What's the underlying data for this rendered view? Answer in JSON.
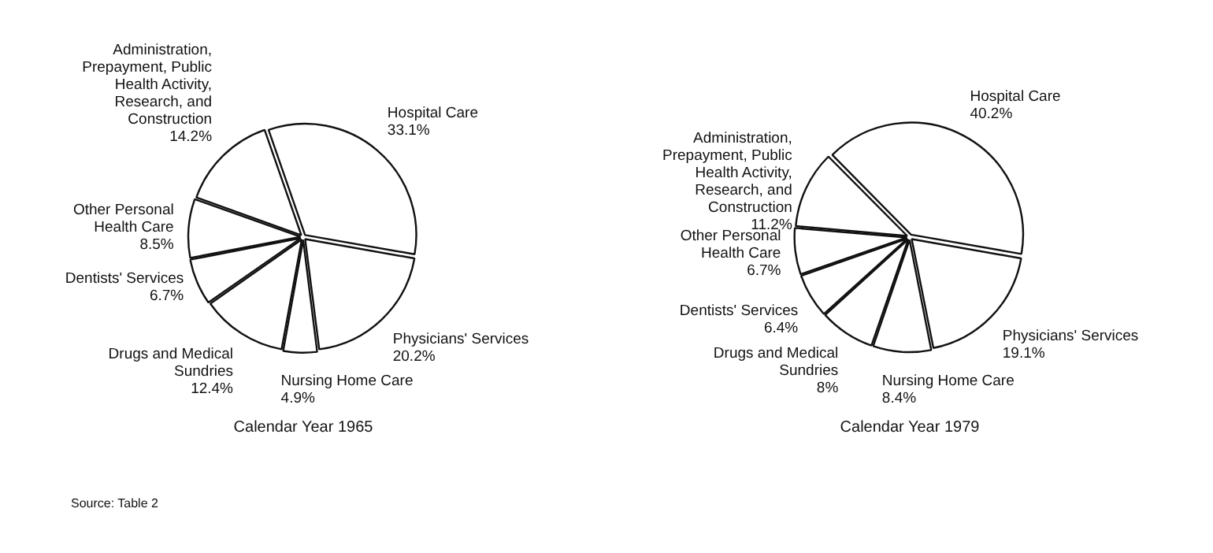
{
  "chart_data": [
    {
      "type": "pie",
      "title": "Calendar Year 1965",
      "categories": [
        "Hospital Care",
        "Physicians' Services",
        "Nursing Home Care",
        "Drugs and Medical Sundries",
        "Dentists' Services",
        "Other Personal Health Care",
        "Administration, Prepayment, Public Health Activity, Research, and Construction"
      ],
      "values": [
        33.1,
        20.2,
        4.9,
        12.4,
        6.7,
        8.5,
        14.2
      ],
      "value_labels": [
        "33.1%",
        "20.2%",
        "4.9%",
        "12.4%",
        "6.7%",
        "8.5%",
        "14.2%"
      ],
      "colors": [
        "#ffffff",
        "#ffffff",
        "#ffffff",
        "#ffffff",
        "#ffffff",
        "#ffffff",
        "#ffffff"
      ],
      "annotations": [
        "Source: Table 2"
      ]
    },
    {
      "type": "pie",
      "title": "Calendar Year 1979",
      "categories": [
        "Hospital Care",
        "Physicians' Services",
        "Nursing Home Care",
        "Drugs and Medical Sundries",
        "Dentists' Services",
        "Other Personal Health Care",
        "Administration, Prepayment, Public Health Activity, Research, and Construction"
      ],
      "values": [
        40.2,
        19.1,
        8.4,
        8,
        6.4,
        6.7,
        11.2
      ],
      "value_labels": [
        "40.2%",
        "19.1%",
        "8.4%",
        "8%",
        "6.4%",
        "6.7%",
        "11.2%"
      ],
      "colors": [
        "#ffffff",
        "#ffffff",
        "#ffffff",
        "#ffffff",
        "#ffffff",
        "#ffffff",
        "#ffffff"
      ]
    }
  ]
}
